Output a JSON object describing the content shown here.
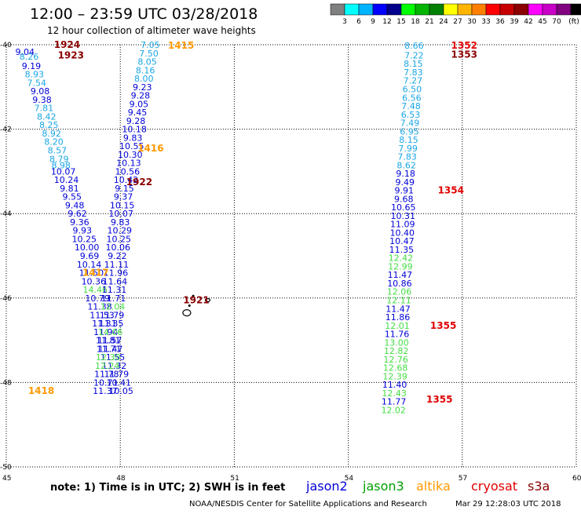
{
  "header": {
    "title": "12:00 – 23:59 UTC 03/28/2018",
    "subtitle": "12 hour collection of altimeter wave heights"
  },
  "colorbar": {
    "colors": [
      "#808080",
      "#00ffff",
      "#00b4ff",
      "#0000ff",
      "#00008b",
      "#00ff00",
      "#00b400",
      "#008000",
      "#ffff00",
      "#ffb400",
      "#ff8000",
      "#ff0000",
      "#c80000",
      "#8b0000",
      "#ff00ff",
      "#c800c8",
      "#800080",
      "#000000"
    ],
    "labels": [
      "3",
      "6",
      "9",
      "12",
      "15",
      "18",
      "21",
      "24",
      "27",
      "30",
      "33",
      "36",
      "39",
      "42",
      "45",
      "70",
      "(ft)"
    ]
  },
  "footer": {
    "note": "note: 1) Time is in UTC; 2) SWH is in feet",
    "legend": [
      {
        "name": "jason2",
        "color": "#0000d8"
      },
      {
        "name": "jason3",
        "color": "#00a000"
      },
      {
        "name": "altika",
        "color": "#ff9900"
      },
      {
        "name": "cryosat",
        "color": "#e00000"
      },
      {
        "name": "s3a",
        "color": "#8b0000"
      }
    ],
    "credit": "NOAA/NESDIS Center for Satellite Applications and Research",
    "timestamp": "Mar 29 12:28:03 UTC 2018"
  },
  "chart_data": {
    "type": "scatter",
    "title": "12:00 – 23:59 UTC 03/28/2018",
    "subtitle": "12 hour collection of altimeter wave heights",
    "xlim": [
      45,
      60
    ],
    "ylim": [
      -50,
      -40
    ],
    "x_ticks": [
      "45",
      "48",
      "51",
      "54",
      "57",
      "60"
    ],
    "y_ticks": [
      "-40",
      "-42",
      "-44",
      "-46",
      "-48",
      "-50"
    ],
    "grid": true,
    "coastline": "small islands near 48.6E-49.4E, 46.1S-46.4S",
    "series": [
      {
        "name": "s3a",
        "color": "#8b0000",
        "points": [
          [
            45.49,
            -40.17,
            "9.04"
          ],
          [
            45.6,
            -40.28,
            "8.26"
          ],
          [
            45.66,
            -40.5,
            "9.19"
          ],
          [
            45.74,
            -40.7,
            "8.93"
          ],
          [
            45.8,
            -40.9,
            "7.54"
          ],
          [
            45.89,
            -41.1,
            "9.08"
          ],
          [
            45.94,
            -41.3,
            "9.38"
          ],
          [
            45.99,
            -41.5,
            "7.81"
          ],
          [
            46.06,
            -41.7,
            "8.42"
          ],
          [
            46.12,
            -41.9,
            "8.25"
          ],
          [
            46.19,
            -42.1,
            "8.92"
          ],
          [
            46.25,
            -42.3,
            "8.20"
          ],
          [
            46.34,
            -42.5,
            "8.57"
          ],
          [
            46.39,
            -42.7,
            "8.79"
          ],
          [
            46.44,
            -42.85,
            "8.98"
          ],
          [
            46.5,
            -43.0,
            "10.07"
          ],
          [
            46.58,
            -43.2,
            "10.24"
          ],
          [
            46.66,
            -43.4,
            "9.81"
          ],
          [
            46.73,
            -43.6,
            "9.55"
          ],
          [
            46.8,
            -43.8,
            "9.48"
          ],
          [
            46.87,
            -44.0,
            "9.62"
          ],
          [
            46.93,
            -44.2,
            "9.36"
          ],
          [
            47.0,
            -44.4,
            "9.93"
          ],
          [
            47.05,
            -44.6,
            "10.25"
          ],
          [
            47.12,
            -44.8,
            "10.00"
          ],
          [
            47.19,
            -45.0,
            "9.69"
          ]
        ]
      },
      {
        "name": "cryosat_east",
        "color": "#0000d8",
        "points": [
          [
            55.73,
            -40.02,
            "8.66"
          ],
          [
            55.73,
            -40.25,
            "7.22"
          ],
          [
            55.71,
            -40.45,
            "8.15"
          ],
          [
            55.71,
            -40.65,
            "7.83"
          ],
          [
            55.7,
            -40.85,
            "7.27"
          ],
          [
            55.68,
            -41.05,
            "6.50"
          ],
          [
            55.67,
            -41.25,
            "6.56"
          ],
          [
            55.65,
            -41.45,
            "7.48"
          ],
          [
            55.64,
            -41.65,
            "6.53"
          ],
          [
            55.62,
            -41.85,
            "7.49"
          ],
          [
            55.61,
            -42.05,
            "6.95"
          ],
          [
            55.59,
            -42.25,
            "8.15"
          ],
          [
            55.57,
            -42.45,
            "7.99"
          ],
          [
            55.55,
            -42.65,
            "7.83"
          ],
          [
            55.53,
            -42.85,
            "8.62"
          ],
          [
            55.51,
            -43.05,
            "9.18"
          ],
          [
            55.49,
            -43.25,
            "9.49"
          ],
          [
            55.47,
            -43.45,
            "9.91"
          ],
          [
            55.46,
            -43.65,
            "9.68"
          ],
          [
            55.45,
            -43.85,
            "10.65"
          ],
          [
            55.44,
            -44.05,
            "10.31"
          ],
          [
            55.43,
            -44.25,
            "11.09"
          ],
          [
            55.42,
            -44.45,
            "10.40"
          ],
          [
            55.41,
            -44.65,
            "10.47"
          ],
          [
            55.4,
            -44.85,
            "11.35"
          ],
          [
            55.38,
            -45.05,
            "12.42"
          ],
          [
            55.37,
            -45.25,
            "12.99"
          ],
          [
            55.36,
            -45.45,
            "11.47"
          ],
          [
            55.35,
            -45.65,
            "10.86"
          ],
          [
            55.34,
            -45.85,
            "12.06"
          ],
          [
            55.33,
            -46.05,
            "12.11"
          ],
          [
            55.31,
            -46.25,
            "11.47"
          ],
          [
            55.3,
            -46.45,
            "11.86"
          ],
          [
            55.29,
            -46.65,
            "12.01"
          ],
          [
            55.28,
            -46.85,
            "11.76"
          ],
          [
            55.27,
            -47.05,
            "13.00"
          ],
          [
            55.26,
            -47.25,
            "12.82"
          ],
          [
            55.25,
            -47.45,
            "12.76"
          ],
          [
            55.24,
            -47.65,
            "12.68"
          ],
          [
            55.23,
            -47.85,
            "12.39"
          ],
          [
            55.22,
            -48.05,
            "11.40"
          ],
          [
            55.21,
            -48.25,
            "12.43"
          ],
          [
            55.2,
            -48.45,
            "11.77"
          ],
          [
            55.19,
            -48.65,
            "12.02"
          ]
        ]
      },
      {
        "name": "jason2_west",
        "color": "#0000d8",
        "points": [
          [
            47.18,
            -45.2,
            "10.14"
          ],
          [
            47.24,
            -45.4,
            "11.50"
          ],
          [
            47.3,
            -45.6,
            "10.36"
          ],
          [
            47.34,
            -45.8,
            "14.46"
          ],
          [
            47.4,
            -46.0,
            "10.79"
          ],
          [
            47.46,
            -46.2,
            "11.38"
          ],
          [
            47.52,
            -46.4,
            "11.53"
          ],
          [
            47.58,
            -46.6,
            "11.31"
          ],
          [
            47.62,
            -46.8,
            "11.94"
          ],
          [
            47.68,
            -47.0,
            "11.81"
          ],
          [
            47.74,
            -47.2,
            "11.47"
          ],
          [
            47.8,
            -47.4,
            "11.55"
          ],
          [
            47.84,
            -47.6,
            "11.32"
          ],
          [
            47.9,
            -47.8,
            "11.79"
          ],
          [
            47.96,
            -48.0,
            "10.41"
          ],
          [
            48.02,
            -48.2,
            "10.05"
          ]
        ]
      },
      {
        "name": "jason2_mid",
        "color": "#0000d8",
        "points": [
          [
            48.79,
            -40.0,
            "7.05"
          ],
          [
            48.75,
            -40.2,
            "7.50"
          ],
          [
            48.71,
            -40.4,
            "8.05"
          ],
          [
            48.66,
            -40.6,
            "8.16"
          ],
          [
            48.62,
            -40.8,
            "8.00"
          ],
          [
            48.58,
            -41.0,
            "9.23"
          ],
          [
            48.53,
            -41.2,
            "9.28"
          ],
          [
            48.49,
            -41.4,
            "9.05"
          ],
          [
            48.45,
            -41.6,
            "9.45"
          ],
          [
            48.41,
            -41.8,
            "9.28"
          ],
          [
            48.37,
            -42.0,
            "10.18"
          ],
          [
            48.33,
            -42.2,
            "9.83"
          ],
          [
            48.3,
            -42.4,
            "10.55"
          ],
          [
            48.26,
            -42.6,
            "10.30"
          ],
          [
            48.22,
            -42.8,
            "10.13"
          ],
          [
            48.19,
            -43.0,
            "10.56"
          ],
          [
            48.15,
            -43.2,
            "10.42"
          ],
          [
            48.11,
            -43.4,
            "9.15"
          ],
          [
            48.08,
            -43.6,
            "9.37"
          ],
          [
            48.05,
            -43.8,
            "10.15"
          ],
          [
            48.02,
            -44.0,
            "10.07"
          ],
          [
            48.0,
            -44.2,
            "9.83"
          ],
          [
            47.98,
            -44.4,
            "10.29"
          ],
          [
            47.96,
            -44.6,
            "10.25"
          ],
          [
            47.94,
            -44.8,
            "10.06"
          ],
          [
            47.92,
            -45.0,
            "9.22"
          ],
          [
            47.9,
            -45.2,
            "11.11"
          ],
          [
            47.88,
            -45.4,
            "11.96"
          ],
          [
            47.86,
            -45.6,
            "11.64"
          ],
          [
            47.84,
            -45.8,
            "11.31"
          ],
          [
            47.82,
            -46.0,
            "11.71"
          ],
          [
            47.8,
            -46.2,
            "12.04"
          ],
          [
            47.78,
            -46.4,
            "11.79"
          ],
          [
            47.76,
            -46.6,
            "11.35"
          ],
          [
            47.74,
            -46.8,
            "14.06"
          ],
          [
            47.72,
            -47.0,
            "11.57"
          ],
          [
            47.7,
            -47.2,
            "11.71"
          ],
          [
            47.68,
            -47.4,
            "12.30"
          ],
          [
            47.66,
            -47.6,
            "12.24"
          ],
          [
            47.64,
            -47.8,
            "11.78"
          ],
          [
            47.62,
            -48.0,
            "10.71"
          ],
          [
            47.6,
            -48.2,
            "11.37"
          ]
        ]
      }
    ],
    "annotations": [
      {
        "text": "1924",
        "x": 46.6,
        "y": -40.0,
        "color": "#8b0000"
      },
      {
        "text": "1923",
        "x": 46.7,
        "y": -40.25,
        "color": "#8b0000"
      },
      {
        "text": "1415",
        "x": 49.6,
        "y": -40.02,
        "color": "#ff9900"
      },
      {
        "text": "1416",
        "x": 48.8,
        "y": -42.45,
        "color": "#ff9900"
      },
      {
        "text": "1922",
        "x": 48.5,
        "y": -43.25,
        "color": "#8b0000"
      },
      {
        "text": "1417",
        "x": 47.35,
        "y": -45.4,
        "color": "#ff9900"
      },
      {
        "text": "1921",
        "x": 50.0,
        "y": -46.05,
        "color": "#8b0000"
      },
      {
        "text": "1418",
        "x": 45.92,
        "y": -48.2,
        "color": "#ff9900"
      },
      {
        "text": "1352",
        "x": 57.05,
        "y": -40.02,
        "color": "#e00000"
      },
      {
        "text": "1353",
        "x": 57.05,
        "y": -40.23,
        "color": "#8b0000"
      },
      {
        "text": "1354",
        "x": 56.7,
        "y": -43.45,
        "color": "#e00000"
      },
      {
        "text": "1355",
        "x": 56.5,
        "y": -46.65,
        "color": "#e00000"
      },
      {
        "text": "1355",
        "x": 56.4,
        "y": -48.4,
        "color": "#e00000"
      }
    ]
  }
}
